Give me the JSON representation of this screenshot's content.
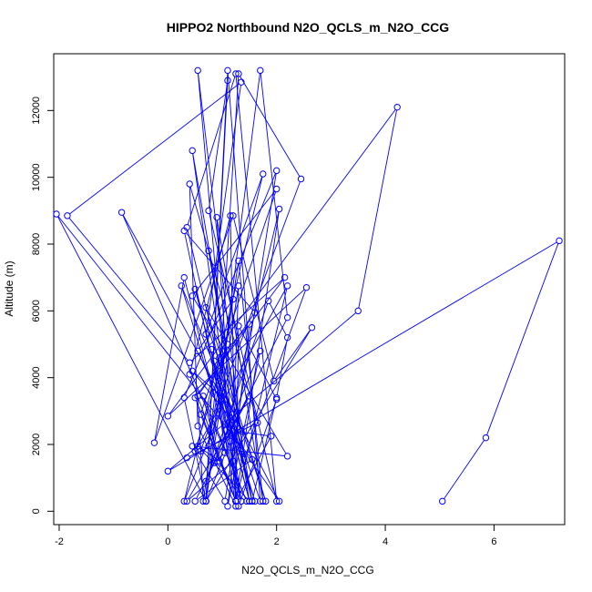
{
  "chart_data": {
    "type": "line",
    "title": "HIPPO2 Northbound N2O_QCLS_m_N2O_CCG",
    "xlabel": "N2O_QCLS_m_N2O_CCG",
    "ylabel": "Altitude (m)",
    "xlim": [
      -2.1,
      7.3
    ],
    "ylim": [
      -400,
      13700
    ],
    "xticks": [
      -2,
      0,
      2,
      4,
      6
    ],
    "yticks": [
      0,
      2000,
      4000,
      6000,
      8000,
      10000,
      12000
    ],
    "xtick_labels": [
      "-2",
      "0",
      "2",
      "4",
      "6"
    ],
    "ytick_labels": [
      "0",
      "2000",
      "4000",
      "6000",
      "8000",
      "10000",
      "12000"
    ],
    "color": "#0000ff",
    "series": [
      {
        "x": [
          5.05,
          5.85,
          7.2,
          0.0,
          3.5,
          4.22,
          0.0,
          2.55,
          1.4,
          0.55,
          1.25,
          2.05,
          0.95,
          0.65,
          1.45,
          -0.85,
          0.95,
          1.35,
          0.45,
          1.55,
          0.35,
          1.25,
          2.0,
          0.75,
          1.1,
          0.7,
          1.7,
          2.2,
          0.5,
          1.55,
          -2.05,
          0.7,
          1.3,
          1.2,
          1.9,
          1.25,
          0.6,
          2.0,
          0.45,
          2.2,
          0.45,
          1.05,
          2.0,
          0.3,
          0.7,
          1.1,
          1.7,
          0.85,
          1.05,
          0.85,
          1.5,
          0.35,
          1.2,
          0.25,
          1.35,
          0.75,
          1.5,
          0.95,
          1.3,
          2.45,
          0.6,
          0.35,
          1.65,
          0.4,
          0.55,
          1.25,
          0.8,
          1.15,
          0.7,
          2.65,
          1.95,
          1.2,
          -0.25,
          0.3,
          1.35,
          0.95,
          0.55,
          1.5,
          0.5,
          1.8,
          0.7,
          1.1,
          0.5,
          2.2,
          1.25,
          0.9,
          1.75,
          1.3,
          0.65,
          0.55,
          1.6,
          0.3,
          1.05,
          2.05,
          1.0,
          1.6,
          1.15,
          0.55,
          1.2,
          0.75,
          0.95,
          1.5,
          1.1,
          1.7,
          0.7,
          1.85,
          2.2,
          2.0,
          1.55,
          1.25,
          0.45,
          1.05,
          0.3,
          1.75,
          0.7,
          1.35,
          -1.85,
          0.4,
          2.15,
          0.5,
          1.25,
          0.4,
          1.15,
          1.25,
          1.3,
          2.0,
          1.3
        ],
        "y": [
          300,
          2200,
          8100,
          1200,
          6000,
          12100,
          2850,
          6700,
          1550,
          13200,
          300,
          9050,
          1450,
          3450,
          300,
          8950,
          3550,
          300,
          10800,
          300,
          8500,
          13100,
          300,
          9000,
          12900,
          300,
          13200,
          5800,
          300,
          1550,
          8900,
          300,
          6750,
          2400,
          2250,
          300,
          2900,
          9650,
          6450,
          1650,
          1950,
          300,
          10200,
          3400,
          300,
          13200,
          300,
          4500,
          1750,
          1450,
          3450,
          300,
          1500,
          6750,
          2400,
          7800,
          300,
          3900,
          13100,
          9950,
          1800,
          1600,
          2650,
          9800,
          2550,
          150,
          4850,
          2100,
          300,
          5500,
          3900,
          8850,
          2050,
          7000,
          300,
          1500,
          1950,
          300,
          6650,
          300,
          6100,
          5000,
          1800,
          6750,
          300,
          8800,
          300,
          7500,
          300,
          3450,
          5950,
          8400,
          2600,
          300,
          3600,
          300,
          2600,
          4800,
          6350,
          1950,
          4600,
          5600,
          150,
          4800,
          900,
          6300,
          5200,
          3400,
          300,
          2600,
          4200,
          3350,
          300,
          10100,
          5300,
          12850,
          8850,
          4450,
          7000,
          3400,
          300,
          4100,
          8850,
          300,
          5550,
          3350,
          150
        ]
      }
    ]
  }
}
